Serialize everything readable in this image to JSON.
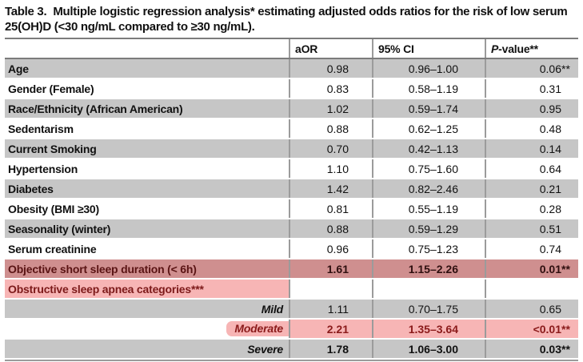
{
  "title": {
    "prefix": "Table 3.",
    "text": "Multiple logistic regression analysis* estimating adjusted odds ratios for the risk of low serum 25(OH)D (<30 ng/mL compared to ≥30 ng/mL)."
  },
  "table": {
    "columns": [
      "",
      "aOR",
      "95% CI",
      "P-value**"
    ],
    "pheader": {
      "italic": "P",
      "rest": "-value",
      "stars": "**"
    },
    "rows": [
      {
        "label": "Age",
        "aor": "0.98",
        "ci": "0.96–1.00",
        "p": "0.06",
        "p_stars": "**",
        "variant": ""
      },
      {
        "label": "Gender (Female)",
        "aor": "0.83",
        "ci": "0.58–1.19",
        "p": "0.31",
        "p_stars": "",
        "variant": ""
      },
      {
        "label": "Race/Ethnicity (African American)",
        "aor": "1.02",
        "ci": "0.59–1.74",
        "p": "0.95",
        "p_stars": "",
        "variant": ""
      },
      {
        "label": "Sedentarism",
        "aor": "0.88",
        "ci": "0.62–1.25",
        "p": "0.48",
        "p_stars": "",
        "variant": ""
      },
      {
        "label": "Current Smoking",
        "aor": "0.70",
        "ci": "0.42–1.13",
        "p": "0.14",
        "p_stars": "",
        "variant": ""
      },
      {
        "label": "Hypertension",
        "aor": "1.10",
        "ci": "0.75–1.60",
        "p": "0.64",
        "p_stars": "",
        "variant": ""
      },
      {
        "label": "Diabetes",
        "aor": "1.42",
        "ci": "0.82–2.46",
        "p": "0.21",
        "p_stars": "",
        "variant": ""
      },
      {
        "label": "Obesity (BMI ≥30)",
        "aor": "0.81",
        "ci": "0.55–1.19",
        "p": "0.28",
        "p_stars": "",
        "variant": ""
      },
      {
        "label": "Seasonality (winter)",
        "aor": "0.88",
        "ci": "0.59–1.29",
        "p": "0.51",
        "p_stars": "",
        "variant": ""
      },
      {
        "label": "Serum creatinine",
        "aor": "0.96",
        "ci": "0.75–1.23",
        "p": "0.74",
        "p_stars": "",
        "variant": ""
      },
      {
        "label": "Objective short sleep duration (< 6h)",
        "aor": "1.61",
        "ci": "1.15–2.26",
        "p": "0.01",
        "p_stars": "**",
        "variant": "strong"
      },
      {
        "label": "Obstructive sleep apnea categories***",
        "aor": "",
        "ci": "",
        "p": "",
        "p_stars": "",
        "variant": "cat"
      },
      {
        "label": "Mild",
        "aor": "1.11",
        "ci": "0.70–1.75",
        "p": "0.65",
        "p_stars": "",
        "variant": "sub"
      },
      {
        "label": "Moderate",
        "aor": "2.21",
        "ci": "1.35–3.64",
        "p": "<0.01",
        "p_stars": "**",
        "variant": "sub light vbold"
      },
      {
        "label": "Severe",
        "aor": "1.78",
        "ci": "1.06–3.00",
        "p": "0.03",
        "p_stars": "**",
        "variant": "sub vbold"
      }
    ]
  },
  "colors": {
    "zebra_gray": "#c6c6c6",
    "highlight_strong_rose": "#cf8f8f",
    "highlight_light_pink": "#f7b5b5",
    "maroon_text": "#8b1b1b",
    "dark_maroon_text": "#5a1414",
    "column_border_gray": "#9b9b9b",
    "rule_dark_gray": "#7c7c7c"
  }
}
